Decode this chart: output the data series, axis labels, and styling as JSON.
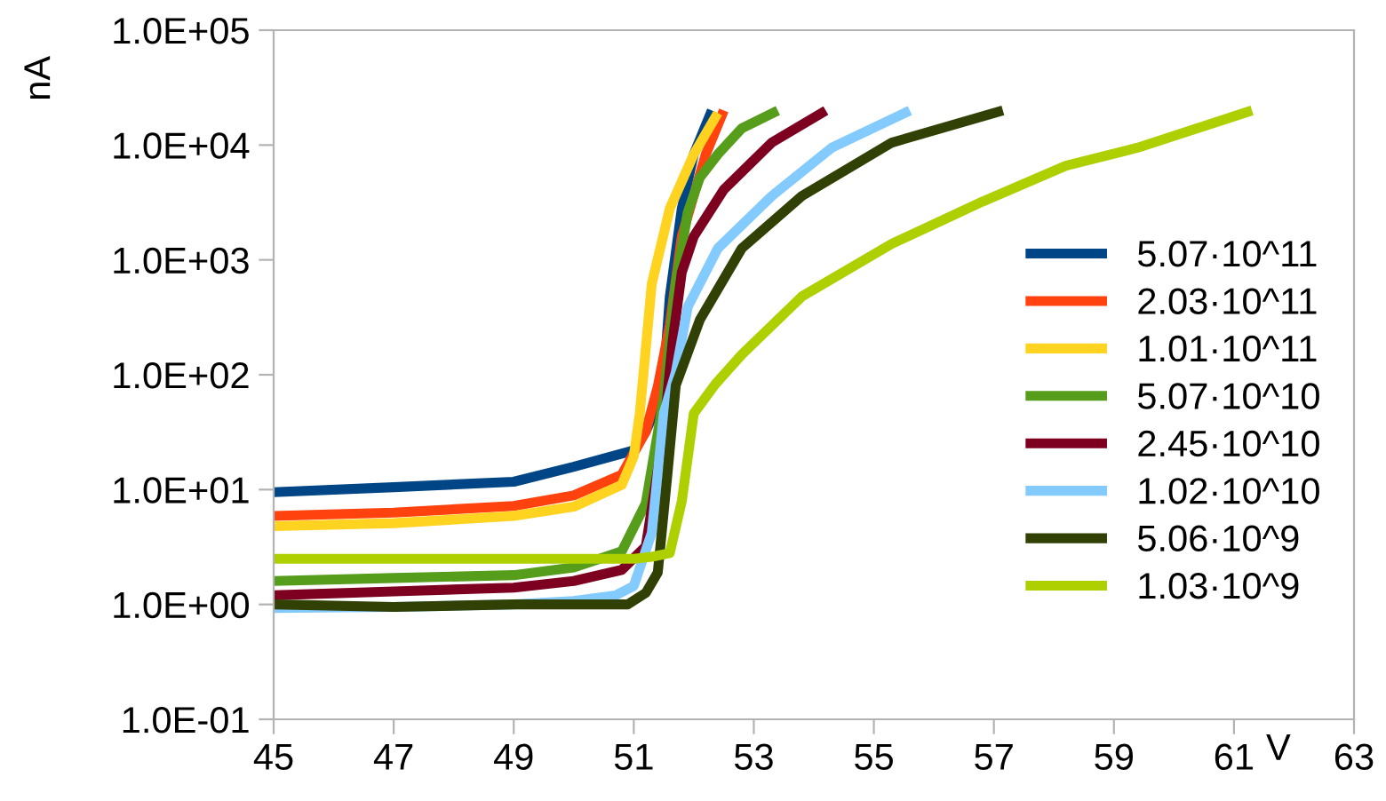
{
  "chart_data": {
    "type": "line",
    "xlabel": "V",
    "ylabel": "nA",
    "log": "y",
    "xlim": [
      45,
      63
    ],
    "xticks": [
      45,
      47,
      49,
      51,
      53,
      55,
      57,
      59,
      61,
      63
    ],
    "ylim": [
      0.1,
      100000
    ],
    "yticks": [
      {
        "value": 0.1,
        "label": "1.0E-01"
      },
      {
        "value": 1,
        "label": "1.0E+00"
      },
      {
        "value": 10,
        "label": "1.0E+01"
      },
      {
        "value": 100,
        "label": "1.0E+02"
      },
      {
        "value": 1000,
        "label": "1.0E+03"
      },
      {
        "value": 10000,
        "label": "1.0E+04"
      },
      {
        "value": 100000,
        "label": "1.0E+05"
      }
    ],
    "grid": false,
    "legend": "right",
    "marker": "none",
    "line_style": "solid",
    "series": [
      {
        "name": "5.07·10^11",
        "color": "#004586",
        "x": [
          45,
          47,
          49,
          50,
          51,
          51.2,
          51.4,
          51.5,
          51.6,
          51.8,
          52.0,
          52.3
        ],
        "values": [
          9.5,
          10.5,
          11.7,
          15.8,
          22,
          32,
          56,
          91,
          480,
          2800,
          8300,
          20000
        ]
      },
      {
        "name": "2.03·10^11",
        "color": "#ff420e",
        "x": [
          45,
          47,
          49,
          50,
          50.8,
          51.2,
          51.4,
          51.6,
          51.8,
          52.2,
          52.5
        ],
        "values": [
          5.9,
          6.3,
          7.2,
          8.9,
          13.5,
          32,
          79,
          270,
          1600,
          8300,
          20000
        ]
      },
      {
        "name": "1.01·10^11",
        "color": "#ffd320",
        "x": [
          45,
          47,
          49,
          50,
          50.8,
          51.0,
          51.1,
          51.3,
          51.6,
          52.0,
          52.4
        ],
        "values": [
          4.8,
          5.1,
          5.9,
          7.1,
          11,
          19.5,
          46,
          620,
          2800,
          8300,
          19000
        ]
      },
      {
        "name": "5.07·10^10",
        "color": "#579d1c",
        "x": [
          45,
          47,
          49,
          50,
          50.8,
          51.2,
          51.5,
          51.7,
          51.9,
          52.1,
          52.4,
          52.8,
          53.4
        ],
        "values": [
          1.6,
          1.7,
          1.8,
          2.1,
          2.9,
          7.6,
          63,
          630,
          2600,
          5200,
          8300,
          14000,
          20000
        ]
      },
      {
        "name": "2.45·10^10",
        "color": "#7e0021",
        "x": [
          45,
          47,
          49,
          50,
          50.8,
          51.2,
          51.5,
          51.65,
          51.8,
          52.0,
          52.5,
          53.3,
          54.2
        ],
        "values": [
          1.2,
          1.3,
          1.4,
          1.6,
          2.0,
          3.2,
          32,
          200,
          780,
          1600,
          4100,
          10500,
          20000
        ]
      },
      {
        "name": "1.02·10^10",
        "color": "#83caff",
        "x": [
          45,
          47,
          49,
          50,
          50.7,
          51.0,
          51.3,
          51.5,
          51.7,
          51.9,
          52.4,
          53.3,
          54.3,
          55.6
        ],
        "values": [
          0.93,
          0.95,
          1.0,
          1.07,
          1.2,
          1.45,
          4.2,
          46,
          105,
          390,
          1260,
          3600,
          9500,
          20000
        ]
      },
      {
        "name": "5.06·10^9",
        "color": "#314004",
        "x": [
          45,
          47,
          49,
          50,
          50.9,
          51.2,
          51.4,
          51.56,
          51.7,
          52.1,
          52.8,
          53.8,
          55.3,
          57.15
        ],
        "values": [
          1.0,
          0.95,
          1.0,
          1.0,
          1.0,
          1.26,
          1.9,
          13.5,
          81,
          300,
          1260,
          3600,
          10500,
          20000
        ]
      },
      {
        "name": "1.03·10^9",
        "color": "#aecf00",
        "x": [
          45,
          47,
          49,
          50,
          51.0,
          51.3,
          51.6,
          51.8,
          52.0,
          52.36,
          52.8,
          53.8,
          55.3,
          56.8,
          58.2,
          59.4,
          61.3
        ],
        "values": [
          2.5,
          2.5,
          2.5,
          2.5,
          2.5,
          2.6,
          2.8,
          7.9,
          46,
          83,
          150,
          480,
          1380,
          3200,
          6600,
          9500,
          20000
        ]
      }
    ]
  }
}
